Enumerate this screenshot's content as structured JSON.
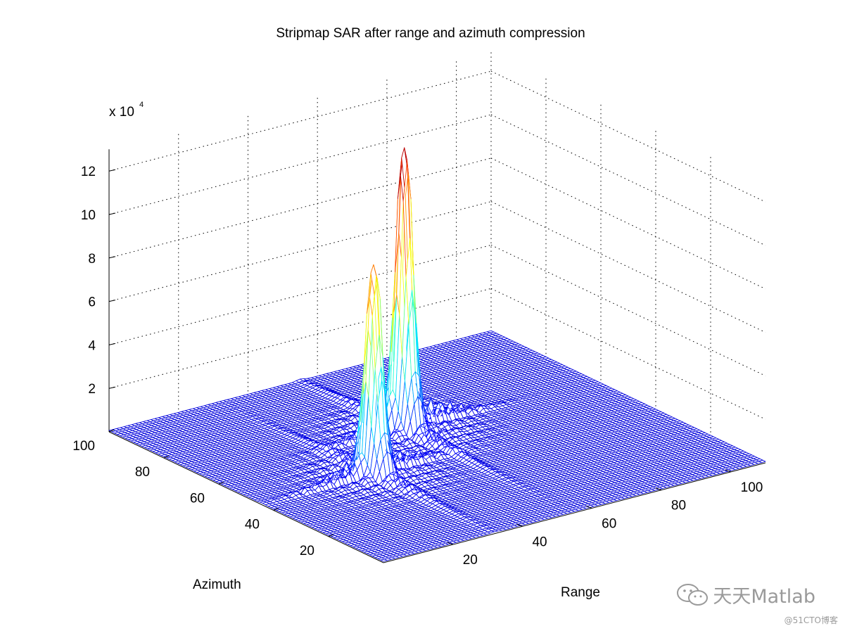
{
  "chart_data": {
    "type": "surface",
    "title": "Stripmap SAR after range and azimuth compression",
    "xlabel": "Range",
    "ylabel": "Azimuth",
    "z_exponent_label": "x 10",
    "z_exponent_power": "4",
    "x_ticks": [
      "20",
      "40",
      "60",
      "80",
      "100"
    ],
    "y_ticks": [
      "20",
      "40",
      "60",
      "80",
      "100"
    ],
    "z_ticks": [
      "2",
      "4",
      "6",
      "8",
      "10",
      "12"
    ],
    "xlim": [
      0,
      110
    ],
    "ylim": [
      0,
      100
    ],
    "zlim": [
      0,
      130000
    ],
    "grid": "on",
    "colormap": "jet",
    "grid_resolution": 100,
    "peaks": [
      {
        "range": 32,
        "azimuth": 44,
        "amplitude": 95000
      },
      {
        "range": 55,
        "azimuth": 62,
        "amplitude": 130000
      }
    ]
  },
  "watermark": {
    "text": "天天Matlab",
    "site": "@51CTO博客",
    "icon": "wechat-icon"
  }
}
